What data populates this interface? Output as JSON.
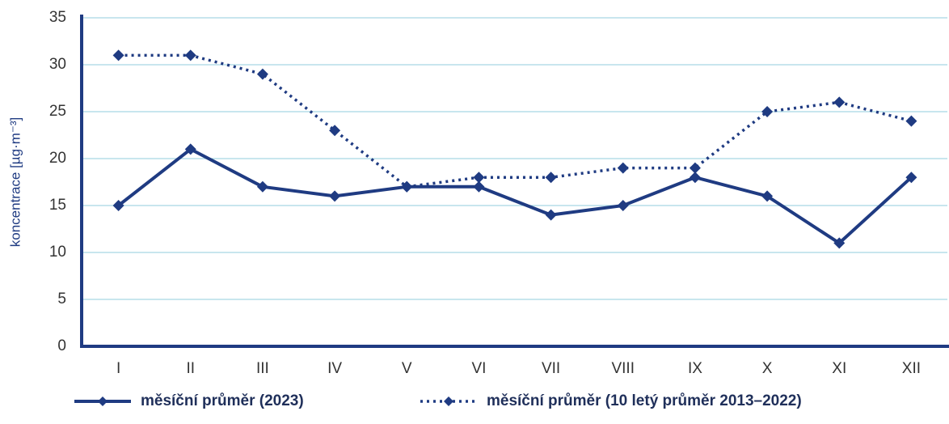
{
  "chart_data": {
    "type": "line",
    "y_label": "koncentrace [µg·m⁻³]",
    "categories": [
      "I",
      "II",
      "III",
      "IV",
      "V",
      "VI",
      "VII",
      "VIII",
      "IX",
      "X",
      "XI",
      "XII"
    ],
    "series": [
      {
        "name": "měsíční průměr (2023)",
        "color": "#1f3b82",
        "style": "solid",
        "values": [
          15,
          21,
          17,
          16,
          17,
          17,
          14,
          15,
          18,
          16,
          11,
          18
        ]
      },
      {
        "name": "měsíční průměr (10 letý průměr 2013–2022)",
        "color": "#1f3b82",
        "style": "dotted",
        "values": [
          31,
          31,
          29,
          23,
          17,
          18,
          18,
          19,
          19,
          25,
          26,
          24
        ]
      }
    ],
    "ylim": [
      0,
      35
    ],
    "yticks": [
      0,
      5,
      10,
      15,
      20,
      25,
      30,
      35
    ],
    "grid": true,
    "legend": "bottom"
  }
}
